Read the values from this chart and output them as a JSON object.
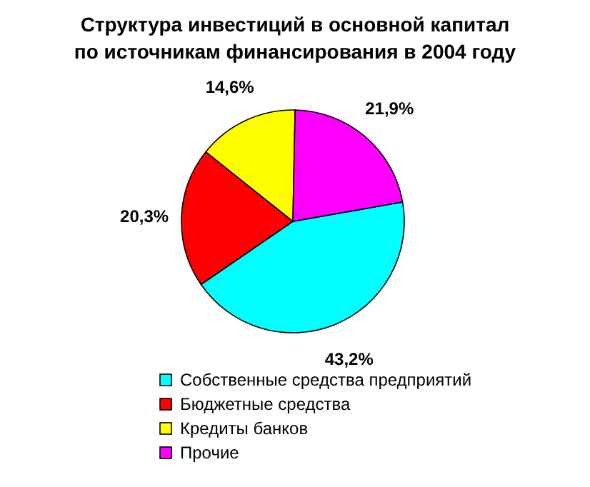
{
  "chart_data": {
    "type": "pie",
    "title": "Структура инвестиций в основной капитал\nпо источникам финансирования в 2004 году",
    "categories": [
      "Собственные средства предприятий",
      "Бюджетные средства",
      "Кредиты банков",
      "Прочие"
    ],
    "values": [
      43.2,
      20.3,
      14.6,
      21.9
    ],
    "colors": [
      "#00ffff",
      "#ff0000",
      "#ffff00",
      "#ff00ff"
    ],
    "value_labels": [
      "43,2%",
      "20,3%",
      "14,6%",
      "21,9%"
    ],
    "legend": "bottom"
  }
}
